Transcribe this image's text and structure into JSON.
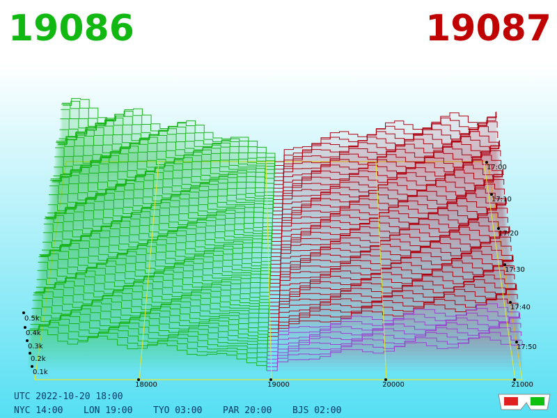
{
  "bid_price": "19086",
  "ask_price": "19087",
  "depth_axis": {
    "ticks": [
      "0.1k",
      "0.2k",
      "0.3k",
      "0.4k",
      "0.5k"
    ]
  },
  "price_axis": {
    "ticks": [
      "18000",
      "19000",
      "20000",
      "21000"
    ]
  },
  "time_axis": {
    "ticks": [
      "17:00",
      "17:10",
      "17:20",
      "17:30",
      "17:40",
      "17:50"
    ]
  },
  "clock": {
    "utc": "UTC 2022-10-20 18:00",
    "cities": [
      "NYC 14:00",
      "LON 19:00",
      "TYO 03:00",
      "PAR 20:00",
      "BJS 02:00"
    ]
  }
}
